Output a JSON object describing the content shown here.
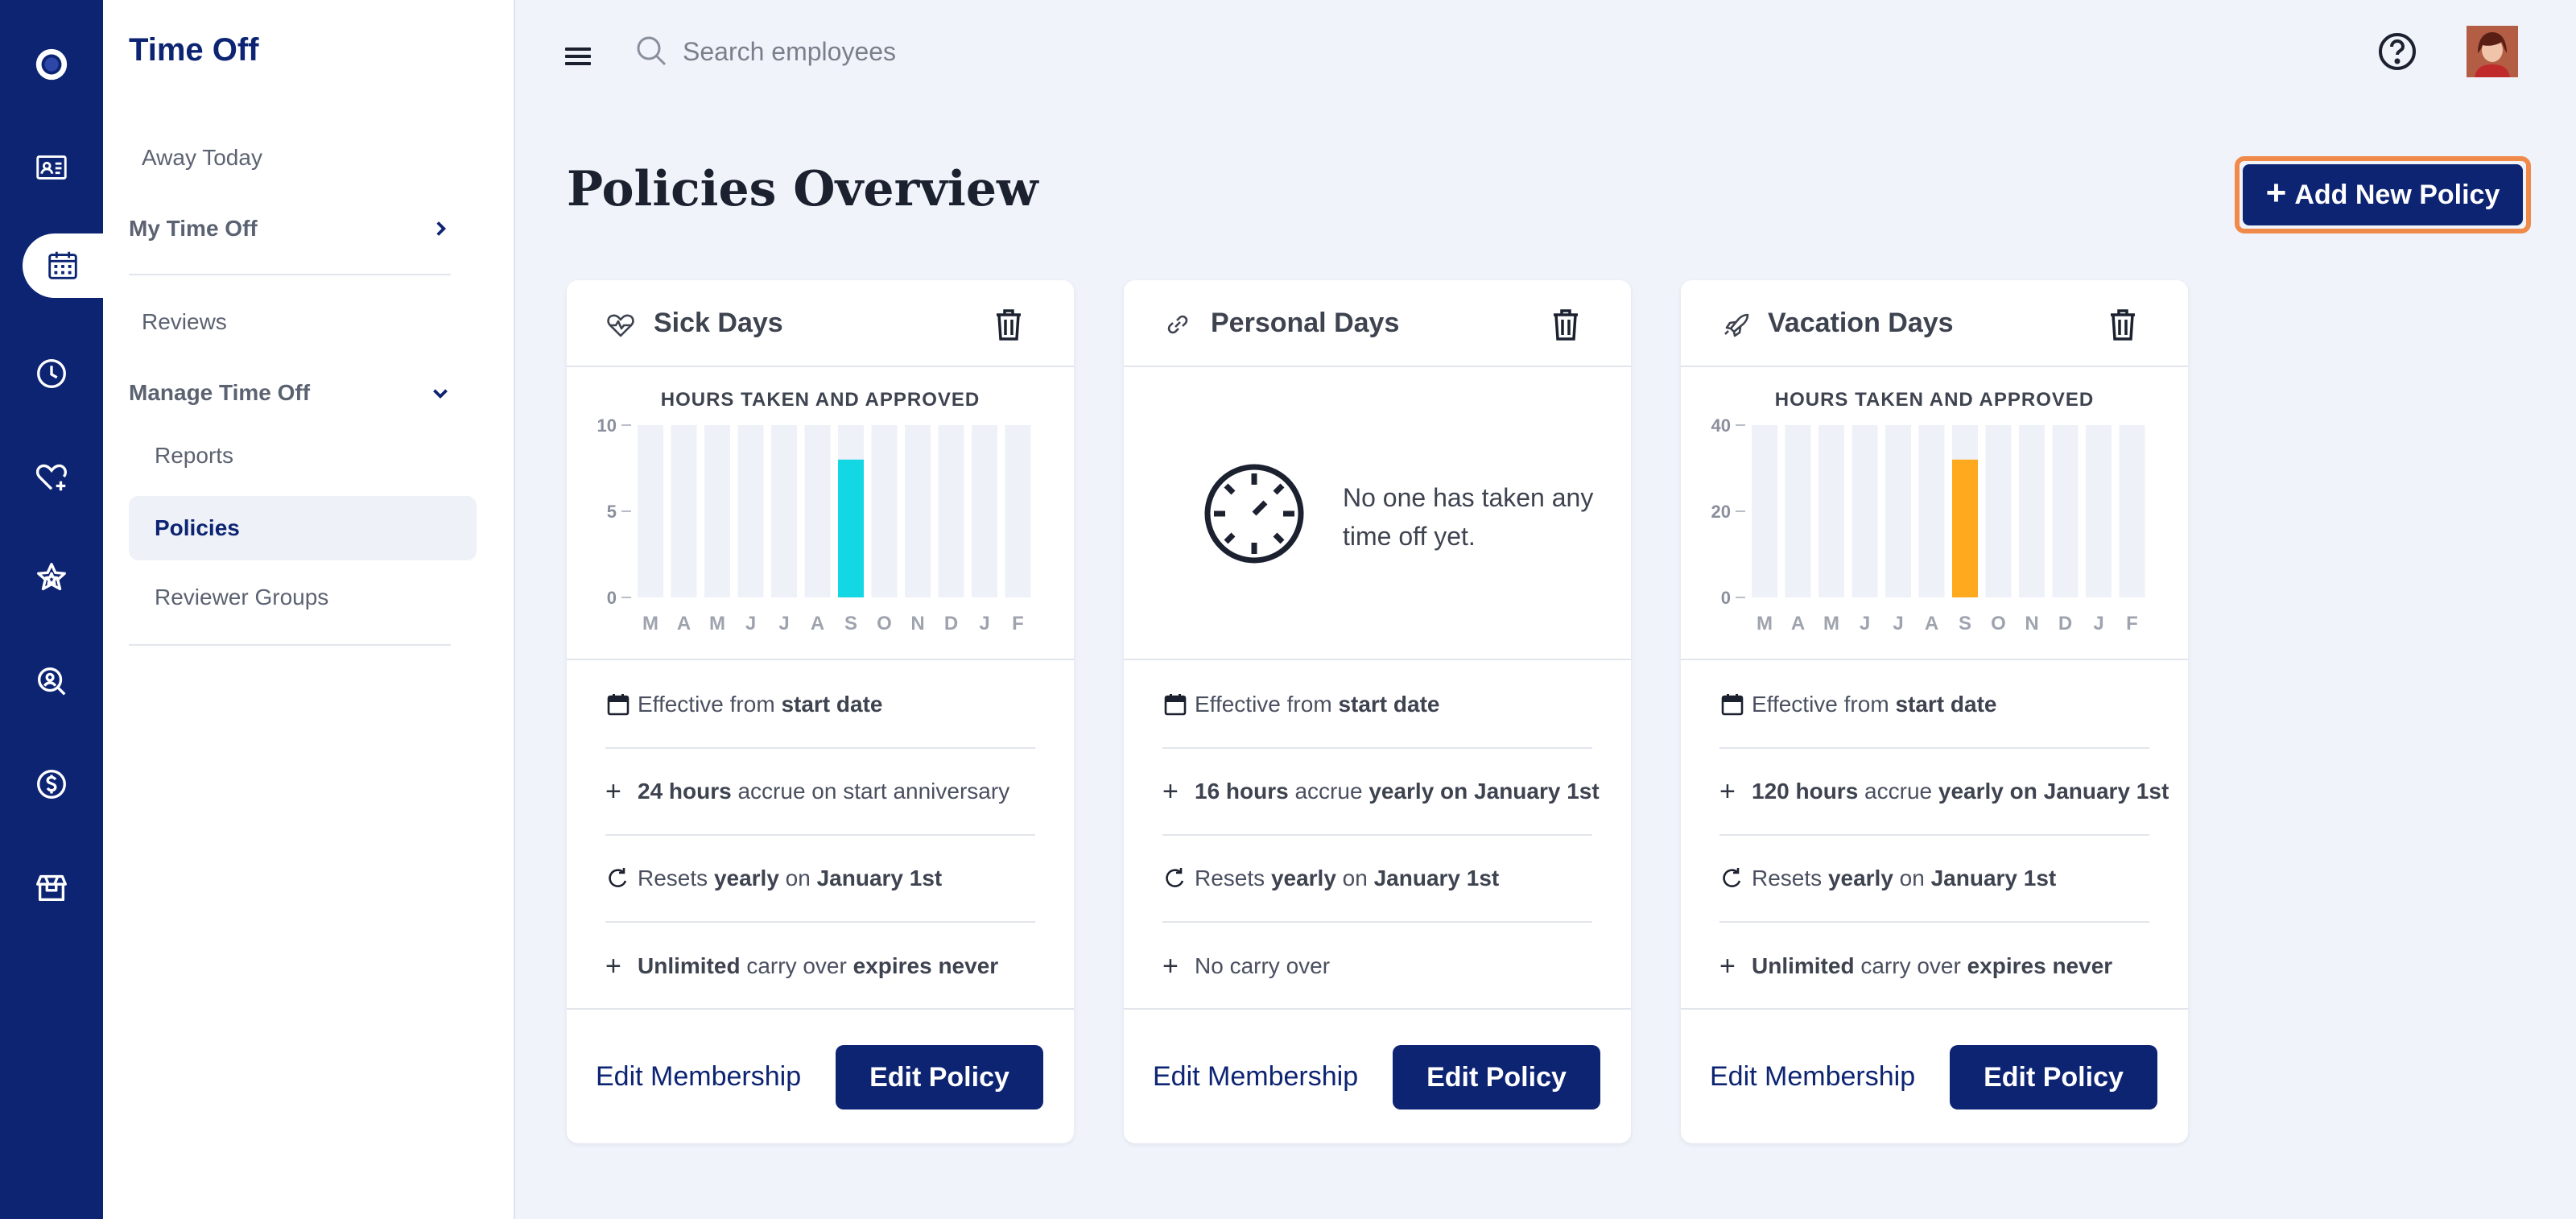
{
  "rail": {
    "items": [
      {
        "icon": "logo-icon"
      },
      {
        "icon": "id-card-icon"
      },
      {
        "icon": "calendar-icon",
        "active": true
      },
      {
        "icon": "clock-icon"
      },
      {
        "icon": "heart-plus-icon"
      },
      {
        "icon": "star-icon"
      },
      {
        "icon": "search-user-icon"
      },
      {
        "icon": "dollar-icon"
      },
      {
        "icon": "gift-icon"
      }
    ]
  },
  "sidebar": {
    "title": "Time Off",
    "away_today": "Away Today",
    "my_time_off": "My Time Off",
    "reviews": "Reviews",
    "manage_time_off": "Manage Time Off",
    "reports": "Reports",
    "policies": "Policies",
    "reviewer_groups": "Reviewer Groups"
  },
  "topbar": {
    "search_placeholder": "Search employees"
  },
  "page": {
    "title": "Policies Overview",
    "add_button_plus": "+",
    "add_button_label": "Add New Policy"
  },
  "colors": {
    "brand": "#0d2473",
    "sick_bar": "#13d7e3",
    "vacation_bar": "#ffa91f",
    "bar_background": "#eef1f8",
    "highlight_ring": "#f08a4b"
  },
  "cards": [
    {
      "title": "Sick Days",
      "icon": "heart-pulse-icon",
      "rows": {
        "effective": {
          "pre": "Effective from ",
          "bold": "start date"
        },
        "accrue": {
          "bold1": "24 hours",
          "mid": " accrue on start anniversary",
          "bold2": ""
        },
        "resets": {
          "pre": "Resets ",
          "bold1": "yearly",
          "mid": " on ",
          "bold2": "January 1st"
        },
        "carry": {
          "bold1": "Unlimited",
          "mid": " carry over ",
          "bold2": "expires never"
        }
      },
      "edit_membership": "Edit Membership",
      "edit_policy": "Edit Policy"
    },
    {
      "title": "Personal Days",
      "icon": "link-icon",
      "empty_text": "No one has taken any time off yet.",
      "rows": {
        "effective": {
          "pre": "Effective from ",
          "bold": "start date"
        },
        "accrue": {
          "bold1": "16 hours",
          "mid": " accrue ",
          "bold2": "yearly on January 1st"
        },
        "resets": {
          "pre": "Resets ",
          "bold1": "yearly",
          "mid": " on ",
          "bold2": "January 1st"
        },
        "carry": {
          "bold1": "",
          "mid": "No carry over",
          "bold2": ""
        }
      },
      "edit_membership": "Edit Membership",
      "edit_policy": "Edit Policy"
    },
    {
      "title": "Vacation Days",
      "icon": "rocket-icon",
      "rows": {
        "effective": {
          "pre": "Effective from ",
          "bold": "start date"
        },
        "accrue": {
          "bold1": "120 hours",
          "mid": " accrue ",
          "bold2": "yearly on January 1st"
        },
        "resets": {
          "pre": "Resets ",
          "bold1": "yearly",
          "mid": " on ",
          "bold2": "January 1st"
        },
        "carry": {
          "bold1": "Unlimited",
          "mid": " carry over ",
          "bold2": "expires never"
        }
      },
      "edit_membership": "Edit Membership",
      "edit_policy": "Edit Policy"
    }
  ],
  "chart_data": [
    {
      "type": "bar",
      "policy": "Sick Days",
      "title": "HOURS TAKEN AND APPROVED",
      "categories": [
        "M",
        "A",
        "M",
        "J",
        "J",
        "A",
        "S",
        "O",
        "N",
        "D",
        "J",
        "F"
      ],
      "values": [
        0,
        0,
        0,
        0,
        0,
        0,
        8,
        0,
        0,
        0,
        0,
        0
      ],
      "yticks": [
        "10",
        "5",
        "0"
      ],
      "ylim": [
        0,
        10
      ],
      "color": "#13d7e3"
    },
    {
      "type": "bar",
      "policy": "Vacation Days",
      "title": "HOURS TAKEN AND APPROVED",
      "categories": [
        "M",
        "A",
        "M",
        "J",
        "J",
        "A",
        "S",
        "O",
        "N",
        "D",
        "J",
        "F"
      ],
      "values": [
        0,
        0,
        0,
        0,
        0,
        0,
        32,
        0,
        0,
        0,
        0,
        0
      ],
      "yticks": [
        "40",
        "20",
        "0"
      ],
      "ylim": [
        0,
        40
      ],
      "color": "#ffa91f"
    }
  ]
}
